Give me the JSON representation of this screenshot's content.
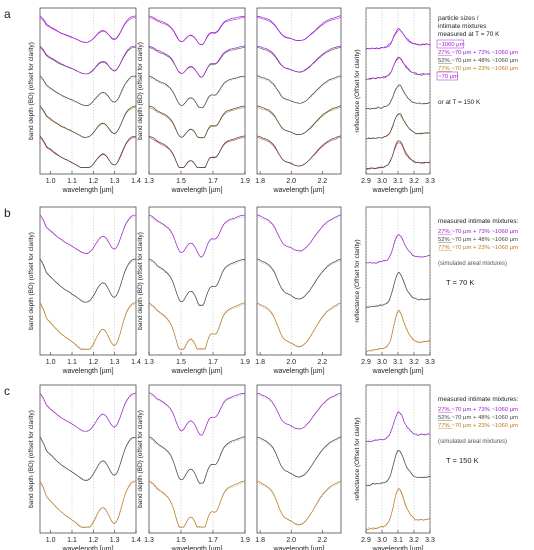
{
  "figure": {
    "rows": [
      {
        "letter": "a",
        "legend": {
          "heading": [
            "particle sizes /",
            "intimate mixtures",
            "measured at T = 70 K"
          ],
          "entries": [
            {
              "text": "~1060 µm",
              "color": "#a020d0",
              "boxed": true
            },
            {
              "text": "27% ~70 µm + 73% ~1060 µm",
              "color": "#a020d0",
              "boxed": false
            },
            {
              "text": "52% ~70 µm + 48% ~1060 µm",
              "color": "#444444",
              "boxed": false
            },
            {
              "text": "77% ~70 µm + 23% ~1060 µm",
              "color": "#c07818",
              "boxed": false
            },
            {
              "text": "~70 µm",
              "color": "#a020d0",
              "boxed": true
            }
          ],
          "footer": "or at T = 150 K"
        }
      },
      {
        "letter": "b",
        "legend": {
          "heading": [
            "measured intimate mixtures:"
          ],
          "entries": [
            {
              "text": "27% ~70 µm + 73% ~1060 µm",
              "color": "#a020d0",
              "boxed": false
            },
            {
              "text": "52% ~70 µm + 48% ~1060 µm",
              "color": "#444444",
              "boxed": false
            },
            {
              "text": "77% ~70 µm + 23% ~1060 µm",
              "color": "#c07818",
              "boxed": false
            }
          ],
          "note": "(simulated areal mixtures)",
          "temperature": "T = 70 K"
        }
      },
      {
        "letter": "c",
        "legend": {
          "heading": [
            "measured intimate mixtures:"
          ],
          "entries": [
            {
              "text": "27% ~70 µm + 73% ~1060 µm",
              "color": "#a020d0",
              "boxed": false
            },
            {
              "text": "52% ~70 µm + 48% ~1060 µm",
              "color": "#444444",
              "boxed": false
            },
            {
              "text": "77% ~70 µm + 23% ~1060 µm",
              "color": "#c07818",
              "boxed": false
            }
          ],
          "note": "(simulated areal mixtures)",
          "temperature": "T = 150 K"
        }
      }
    ],
    "colors": {
      "purple": "#a020d0",
      "dark": "#444444",
      "orange": "#c07818",
      "red": "#d03030",
      "grey": "#9a9a9a"
    }
  },
  "chart_data": [
    {
      "type": "line",
      "panel": "band-1.05",
      "xlabel": "wavelength [µm]",
      "ylabel": "band depth (BD) (offset for clarity)",
      "xlim": [
        0.95,
        1.4
      ],
      "xticks": [
        "1.0",
        "1.1",
        "1.2",
        "1.3",
        "1.4"
      ],
      "xtick_values": [
        1.0,
        1.1,
        1.2,
        1.3,
        1.4
      ]
    },
    {
      "type": "line",
      "panel": "band-1.5",
      "xlabel": "wavelength [µm]",
      "ylabel": "band depth (BD) (offset for clarity)",
      "xlim": [
        1.3,
        1.9
      ],
      "xticks": [
        "1.3",
        "1.5",
        "1.7",
        "1.9"
      ],
      "xtick_values": [
        1.3,
        1.5,
        1.7,
        1.9
      ]
    },
    {
      "type": "line",
      "panel": "band-2.0",
      "xlabel": "wavelength [µm]",
      "ylabel": "",
      "xlim": [
        1.78,
        2.32
      ],
      "xticks": [
        "1.8",
        "2.0",
        "2.2"
      ],
      "xtick_values": [
        1.8,
        2.0,
        2.2
      ]
    },
    {
      "type": "line",
      "panel": "reflectance-3.1",
      "xlabel": "wavelength [µm]",
      "ylabel": "reflectance (Offset for clarity)",
      "xlim": [
        2.9,
        3.3
      ],
      "xticks": [
        "2.9",
        "3.0",
        "3.1",
        "3.2",
        "3.3"
      ],
      "xtick_values": [
        2.9,
        3.0,
        3.1,
        3.2,
        3.3
      ]
    }
  ]
}
